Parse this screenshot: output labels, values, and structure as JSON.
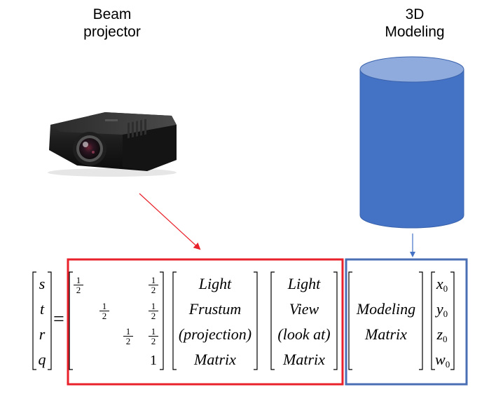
{
  "labels": {
    "beam_line1": "Beam",
    "beam_line2": "projector",
    "modeling_line1": "3D",
    "modeling_line2": "Modeling"
  },
  "equation": {
    "lhs_vector": [
      "s",
      "t",
      "r",
      "q"
    ],
    "equals": "=",
    "bias_matrix": {
      "half_num": "1",
      "half_den": "2",
      "one": "1"
    },
    "frustum_matrix": [
      "Light",
      "Frustum",
      "(projection)",
      "Matrix"
    ],
    "view_matrix": [
      "Light",
      "View",
      "(look at)",
      "Matrix"
    ],
    "modeling_matrix": [
      "Modeling",
      "Matrix"
    ],
    "rhs_vector": [
      {
        "base": "x",
        "sub": "0"
      },
      {
        "base": "y",
        "sub": "0"
      },
      {
        "base": "z",
        "sub": "0"
      },
      {
        "base": "w",
        "sub": "0"
      }
    ]
  },
  "colors": {
    "red_box": "#e8212a",
    "blue_box": "#4a6fb5",
    "cylinder_body": "#4472c4",
    "cylinder_top": "#8faadc",
    "red_arrow": "#e8212a",
    "blue_arrow": "#4472c4"
  },
  "icons": [
    "projector-image",
    "cylinder-shape",
    "red-arrow",
    "blue-arrow"
  ]
}
